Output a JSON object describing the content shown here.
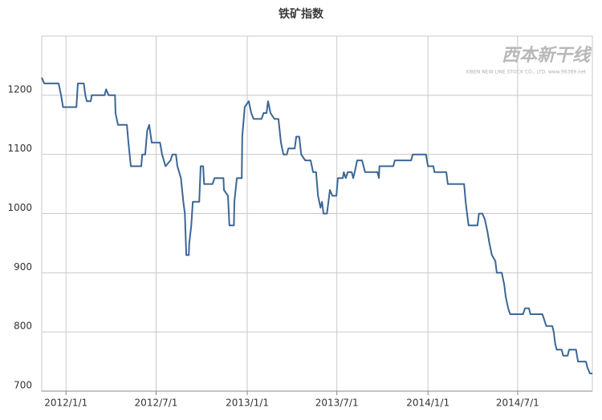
{
  "chart_data": {
    "type": "line",
    "title": "铁矿指数",
    "watermark": {
      "name": "西本新干线",
      "caption": "XIBEN NEW LINE STOCK CO., LTD. www.96369.net"
    },
    "x": [
      "2011-11-13",
      "2011-11-18",
      "2011-12-17",
      "2011-12-22",
      "2011-12-26",
      "2012-01-22",
      "2012-01-25",
      "2012-02-06",
      "2012-02-09",
      "2012-02-12",
      "2012-02-20",
      "2012-02-22",
      "2012-03-19",
      "2012-03-22",
      "2012-03-27",
      "2012-04-09",
      "2012-04-10",
      "2012-04-15",
      "2012-05-03",
      "2012-05-06",
      "2012-05-11",
      "2012-06-01",
      "2012-06-03",
      "2012-06-09",
      "2012-06-13",
      "2012-06-17",
      "2012-06-22",
      "2012-07-09",
      "2012-07-13",
      "2012-07-20",
      "2012-07-30",
      "2012-08-03",
      "2012-08-10",
      "2012-08-13",
      "2012-08-20",
      "2012-08-25",
      "2012-08-28",
      "2012-08-31",
      "2012-09-05",
      "2012-09-06",
      "2012-09-10",
      "2012-09-13",
      "2012-09-26",
      "2012-09-29",
      "2012-10-04",
      "2012-10-06",
      "2012-10-23",
      "2012-10-27",
      "2012-11-14",
      "2012-11-15",
      "2012-11-23",
      "2012-11-26",
      "2012-12-05",
      "2012-12-06",
      "2012-12-11",
      "2012-12-21",
      "2012-12-22",
      "2012-12-27",
      "2013-01-04",
      "2013-01-09",
      "2013-01-14",
      "2013-01-30",
      "2013-02-03",
      "2013-02-09",
      "2013-02-12",
      "2013-02-17",
      "2013-02-25",
      "2013-03-05",
      "2013-03-10",
      "2013-03-15",
      "2013-03-22",
      "2013-03-25",
      "2013-04-07",
      "2013-04-10",
      "2013-04-16",
      "2013-04-20",
      "2013-04-28",
      "2013-05-09",
      "2013-05-14",
      "2013-05-20",
      "2013-05-24",
      "2013-05-29",
      "2013-06-01",
      "2013-06-04",
      "2013-06-11",
      "2013-06-14",
      "2013-06-17",
      "2013-06-22",
      "2013-06-30",
      "2013-07-03",
      "2013-07-13",
      "2013-07-15",
      "2013-07-19",
      "2013-07-23",
      "2013-07-31",
      "2013-08-03",
      "2013-08-06",
      "2013-08-11",
      "2013-08-21",
      "2013-08-27",
      "2013-09-21",
      "2013-09-24",
      "2013-09-25",
      "2013-10-23",
      "2013-10-26",
      "2013-11-28",
      "2013-12-01",
      "2013-12-28",
      "2014-01-01",
      "2014-01-12",
      "2014-01-14",
      "2014-02-07",
      "2014-02-10",
      "2014-03-15",
      "2014-03-18",
      "2014-03-21",
      "2014-03-24",
      "2014-04-11",
      "2014-04-14",
      "2014-04-21",
      "2014-04-26",
      "2014-05-01",
      "2014-05-05",
      "2014-05-10",
      "2014-05-17",
      "2014-05-20",
      "2014-05-30",
      "2014-06-04",
      "2014-06-07",
      "2014-06-12",
      "2014-06-16",
      "2014-07-12",
      "2014-07-16",
      "2014-07-24",
      "2014-07-27",
      "2014-08-20",
      "2014-08-24",
      "2014-08-28",
      "2014-09-09",
      "2014-09-12",
      "2014-09-15",
      "2014-09-18",
      "2014-09-28",
      "2014-10-01",
      "2014-10-10",
      "2014-10-13",
      "2014-10-27",
      "2014-10-31",
      "2014-11-16",
      "2014-11-19",
      "2014-11-24",
      "2014-11-29"
    ],
    "series": [
      {
        "color": "#3b6796",
        "values": [
          1230,
          1220,
          1220,
          1200,
          1180,
          1180,
          1220,
          1220,
          1200,
          1190,
          1190,
          1200,
          1200,
          1210,
          1200,
          1200,
          1170,
          1150,
          1150,
          1120,
          1080,
          1080,
          1100,
          1100,
          1140,
          1150,
          1120,
          1120,
          1100,
          1080,
          1090,
          1100,
          1100,
          1080,
          1060,
          1020,
          1000,
          930,
          930,
          950,
          980,
          1020,
          1020,
          1080,
          1080,
          1050,
          1050,
          1060,
          1060,
          1040,
          1030,
          980,
          980,
          1020,
          1060,
          1060,
          1130,
          1180,
          1190,
          1170,
          1160,
          1160,
          1170,
          1170,
          1190,
          1170,
          1160,
          1160,
          1120,
          1100,
          1100,
          1110,
          1110,
          1130,
          1130,
          1100,
          1090,
          1090,
          1070,
          1070,
          1030,
          1010,
          1020,
          1000,
          1000,
          1020,
          1040,
          1030,
          1030,
          1060,
          1060,
          1070,
          1060,
          1070,
          1070,
          1060,
          1070,
          1090,
          1090,
          1070,
          1070,
          1060,
          1080,
          1080,
          1090,
          1090,
          1100,
          1100,
          1080,
          1080,
          1070,
          1070,
          1050,
          1050,
          1020,
          1000,
          980,
          980,
          1000,
          1000,
          990,
          970,
          950,
          930,
          920,
          900,
          900,
          880,
          860,
          840,
          830,
          830,
          840,
          840,
          830,
          830,
          820,
          810,
          810,
          800,
          780,
          770,
          770,
          760,
          760,
          770,
          770,
          750,
          750,
          740,
          730,
          730
        ]
      }
    ],
    "xlim": [
      "2011-11-13",
      "2014-11-29"
    ],
    "xticks": [
      {
        "value": "2012-01-01",
        "label": "2012/1/1"
      },
      {
        "value": "2012-07-01",
        "label": "2012/7/1"
      },
      {
        "value": "2013-01-01",
        "label": "2013/1/1"
      },
      {
        "value": "2013-07-01",
        "label": "2013/7/1"
      },
      {
        "value": "2014-01-01",
        "label": "2014/1/1"
      },
      {
        "value": "2014-07-01",
        "label": "2014/7/1"
      }
    ],
    "ylim": [
      700,
      1300
    ],
    "yticks": [
      700,
      800,
      900,
      1000,
      1100,
      1200
    ],
    "grid": true
  }
}
